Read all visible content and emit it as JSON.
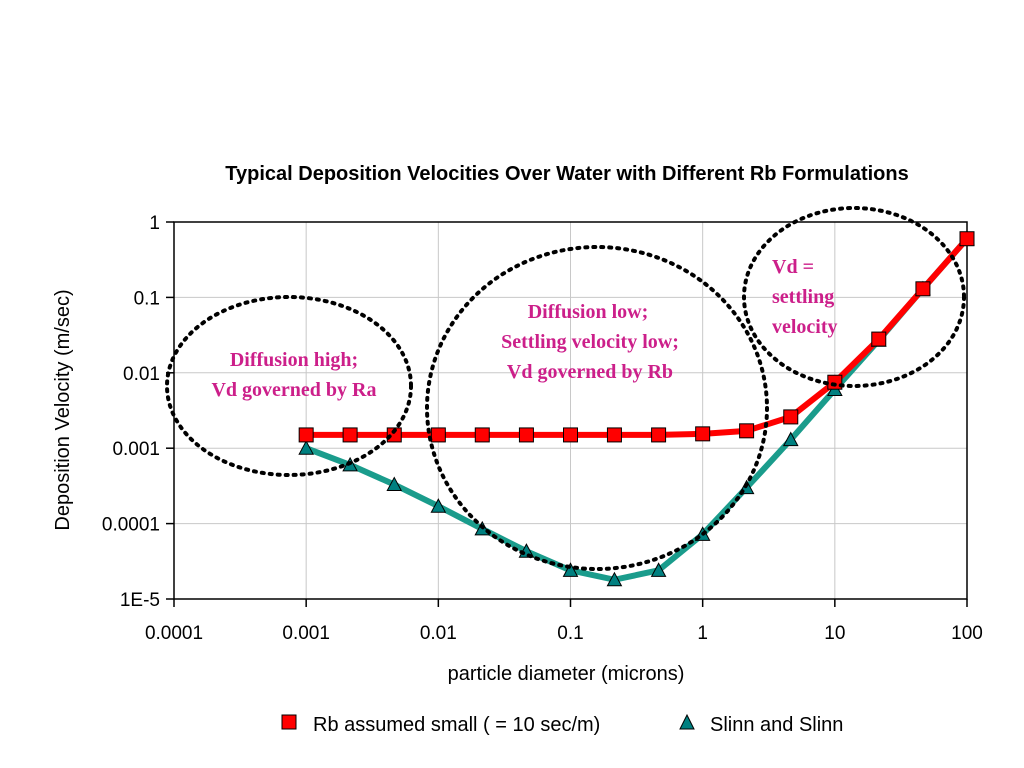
{
  "chart_data": {
    "type": "line",
    "title": "Typical Deposition Velocities Over Water with Different Rb Formulations",
    "xlabel": "particle diameter (microns)",
    "ylabel": "Deposition Velocity (m/sec)",
    "x_scale": "log",
    "y_scale": "log",
    "xlim": [
      0.0001,
      100
    ],
    "ylim": [
      1e-05,
      1
    ],
    "x_ticks": [
      {
        "value": 0.0001,
        "label": "0.0001"
      },
      {
        "value": 0.001,
        "label": "0.001"
      },
      {
        "value": 0.01,
        "label": "0.01"
      },
      {
        "value": 0.1,
        "label": "0.1"
      },
      {
        "value": 1,
        "label": "1"
      },
      {
        "value": 10,
        "label": "10"
      },
      {
        "value": 100,
        "label": "100"
      }
    ],
    "y_ticks": [
      {
        "value": 1e-05,
        "label": "1E-5"
      },
      {
        "value": 0.0001,
        "label": "0.0001"
      },
      {
        "value": 0.001,
        "label": "0.001"
      },
      {
        "value": 0.01,
        "label": "0.01"
      },
      {
        "value": 0.1,
        "label": "0.1"
      },
      {
        "value": 1,
        "label": "1"
      }
    ],
    "grid": true,
    "legend_position": "bottom",
    "series": [
      {
        "name": "Rb assumed small ( = 10 sec/m)",
        "color": "#ff0000",
        "marker_color": "#ff0000",
        "marker": "square",
        "x": [
          0.001,
          0.00215,
          0.00464,
          0.01,
          0.0215,
          0.0464,
          0.1,
          0.215,
          0.464,
          1,
          2.15,
          4.64,
          10,
          21.5,
          46.4,
          100
        ],
        "values": [
          0.0015,
          0.0015,
          0.0015,
          0.0015,
          0.0015,
          0.0015,
          0.0015,
          0.0015,
          0.0015,
          0.00155,
          0.0017,
          0.0026,
          0.0075,
          0.028,
          0.13,
          0.6
        ]
      },
      {
        "name": "Slinn and Slinn",
        "color": "#1a9c8c",
        "marker_color": "#008080",
        "marker": "triangle",
        "x": [
          0.001,
          0.00215,
          0.00464,
          0.01,
          0.0215,
          0.0464,
          0.1,
          0.215,
          0.464,
          1,
          2.15,
          4.64,
          10,
          21.5,
          46.4,
          100
        ],
        "values": [
          0.001,
          0.0006,
          0.00033,
          0.00017,
          8.5e-05,
          4.3e-05,
          2.4e-05,
          1.8e-05,
          2.4e-05,
          7.2e-05,
          0.0003,
          0.0013,
          0.006,
          0.027,
          0.13,
          0.6
        ]
      }
    ],
    "annotations": [
      {
        "id": "left",
        "lines": [
          "Diffusion high;",
          "Vd governed by Ra"
        ]
      },
      {
        "id": "middle",
        "lines": [
          "Diffusion low;",
          "Settling velocity low;",
          "Vd governed by Rb"
        ]
      },
      {
        "id": "right",
        "lines": [
          "Vd =",
          "settling",
          "velocity"
        ]
      }
    ]
  }
}
